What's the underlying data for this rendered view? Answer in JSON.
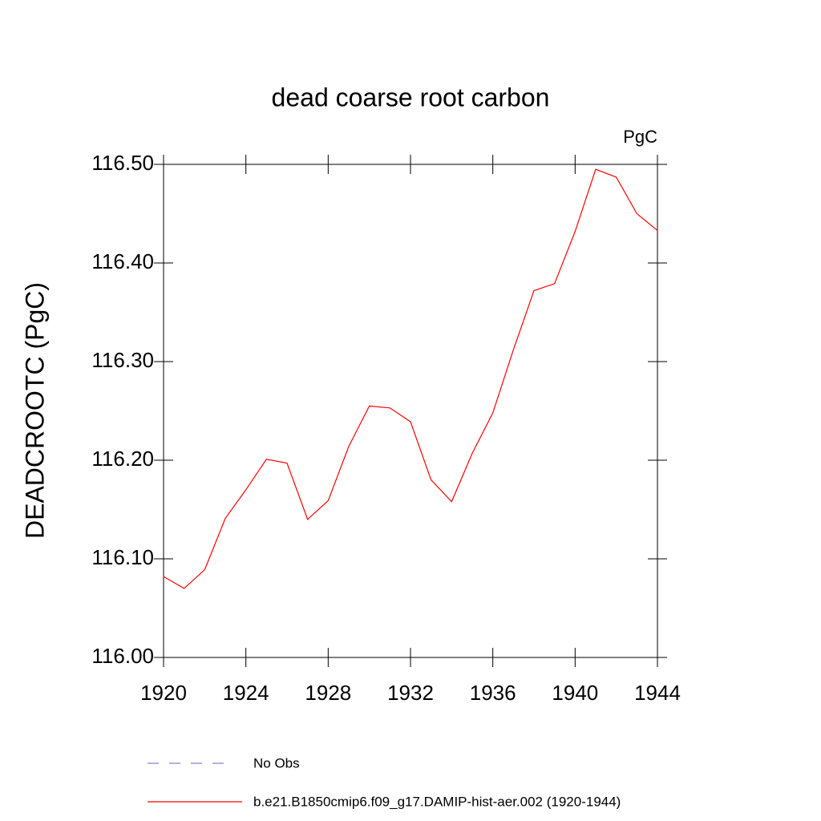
{
  "chart_data": {
    "type": "line",
    "title": "dead coarse root carbon",
    "units": "PgC",
    "ylabel": "DEADCROOTC  (PgC)",
    "x": [
      1920,
      1921,
      1922,
      1923,
      1924,
      1925,
      1926,
      1927,
      1928,
      1929,
      1930,
      1931,
      1932,
      1933,
      1934,
      1935,
      1936,
      1937,
      1938,
      1939,
      1940,
      1941,
      1942,
      1943,
      1944
    ],
    "series": [
      {
        "name": "b.e21.B1850cmip6.f09_g17.DAMIP-hist-aer.002 (1920-1944)",
        "color": "#ff0000",
        "values": [
          116.082,
          116.07,
          116.089,
          116.141,
          116.17,
          116.201,
          116.197,
          116.14,
          116.159,
          116.214,
          116.255,
          116.253,
          116.239,
          116.18,
          116.158,
          116.207,
          116.248,
          116.312,
          116.372,
          116.379,
          116.432,
          116.495,
          116.487,
          116.45,
          116.433
        ]
      }
    ],
    "reference": {
      "name": "No Obs",
      "color": "#8c7fd0",
      "style": "dashed"
    },
    "xlim": [
      1920,
      1944
    ],
    "xticks": [
      1920,
      1924,
      1928,
      1932,
      1936,
      1940,
      1944
    ],
    "ylim": [
      116.0,
      116.5
    ],
    "yticks": [
      {
        "value": 116.0,
        "label": "116.00"
      },
      {
        "value": 116.1,
        "label": "116.10"
      },
      {
        "value": 116.2,
        "label": "116.20"
      },
      {
        "value": 116.3,
        "label": "116.30"
      },
      {
        "value": 116.4,
        "label": "116.40"
      },
      {
        "value": 116.5,
        "label": "116.50"
      }
    ],
    "grid": false
  }
}
